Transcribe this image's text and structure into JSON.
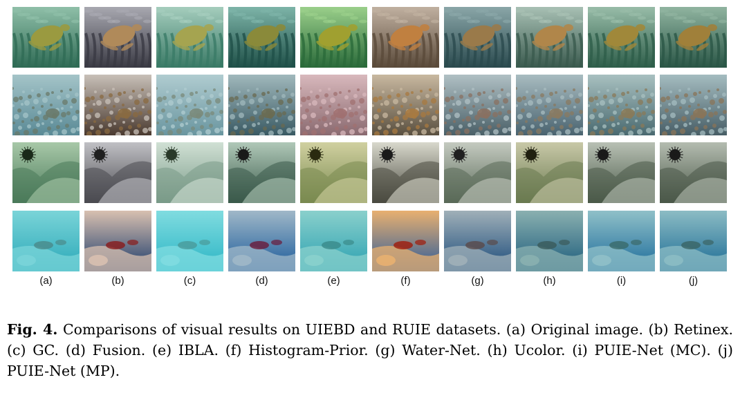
{
  "figure": {
    "column_labels": [
      "(a)",
      "(b)",
      "(c)",
      "(d)",
      "(e)",
      "(f)",
      "(g)",
      "(h)",
      "(i)",
      "(j)"
    ],
    "caption_label": "Fig. 4.",
    "caption_text": " Comparisons of visual results on UIEBD and RUIE datasets. (a) Original image. (b) Retinex. (c) GC. (d) Fusion. (e) IBLA. (f) Histogram-Prior. (g) Water-Net. (h) Ucolor. (i) PUIE-Net (MC). (j) PUIE-Net (MP).",
    "rows": [
      {
        "scene": "sea-turtle",
        "cells": [
          {
            "bg": "#2f6b55",
            "bg2": "#8fbfa8",
            "accent": "#9a9a40"
          },
          {
            "bg": "#3a3a44",
            "bg2": "#a8a8b0",
            "accent": "#b08a5a"
          },
          {
            "bg": "#3a7a66",
            "bg2": "#a5cdbd",
            "accent": "#a5a450"
          },
          {
            "bg": "#1f5048",
            "bg2": "#7db4a8",
            "accent": "#8a8a3a"
          },
          {
            "bg": "#2a6a3a",
            "bg2": "#9acf8a",
            "accent": "#a0a030"
          },
          {
            "bg": "#5a4a3a",
            "bg2": "#c0b0a0",
            "accent": "#c08040"
          },
          {
            "bg": "#2a4a4e",
            "bg2": "#8aa6a8",
            "accent": "#9a7a4a"
          },
          {
            "bg": "#3a5a4e",
            "bg2": "#a8c0b4",
            "accent": "#b0864a"
          },
          {
            "bg": "#2e5e4a",
            "bg2": "#98bca8",
            "accent": "#a0883a"
          },
          {
            "bg": "#2a5646",
            "bg2": "#90b4a0",
            "accent": "#a0803a"
          }
        ]
      },
      {
        "scene": "coral-reef",
        "cells": [
          {
            "bg": "#5a8a96",
            "bg2": "#a4c4c8",
            "accent": "#6a7a6a"
          },
          {
            "bg": "#4a3a30",
            "bg2": "#c8c0b8",
            "accent": "#8a6a40"
          },
          {
            "bg": "#6a96a0",
            "bg2": "#b0ccd0",
            "accent": "#7a8a7a"
          },
          {
            "bg": "#3a5a64",
            "bg2": "#a0b8bc",
            "accent": "#6a6a50"
          },
          {
            "bg": "#8a6a70",
            "bg2": "#d8b8bc",
            "accent": "#a07070"
          },
          {
            "bg": "#5a5040",
            "bg2": "#c8b8a0",
            "accent": "#a87a40"
          },
          {
            "bg": "#4a6068",
            "bg2": "#b0c0c4",
            "accent": "#8a7060"
          },
          {
            "bg": "#4a6470",
            "bg2": "#a8bcc0",
            "accent": "#8a7a60"
          },
          {
            "bg": "#4a6a70",
            "bg2": "#a8c0c0",
            "accent": "#8a7a58"
          },
          {
            "bg": "#485e66",
            "bg2": "#a4bcc0",
            "accent": "#8a7458"
          }
        ]
      },
      {
        "scene": "sea-urchin-rock",
        "cells": [
          {
            "bg": "#4a7a5a",
            "bg2": "#a8c8a8",
            "accent": "#1a2a1a"
          },
          {
            "bg": "#4a4a50",
            "bg2": "#c0c0c4",
            "accent": "#202020"
          },
          {
            "bg": "#7a9a88",
            "bg2": "#d0e0d4",
            "accent": "#2a3a2a"
          },
          {
            "bg": "#3a5a4a",
            "bg2": "#b0c8b8",
            "accent": "#1a1a1a"
          },
          {
            "bg": "#7a8a50",
            "bg2": "#d0d0a0",
            "accent": "#2a2a10"
          },
          {
            "bg": "#4a4a40",
            "bg2": "#d8d8cc",
            "accent": "#1a1a1a"
          },
          {
            "bg": "#5a6a58",
            "bg2": "#c4cac0",
            "accent": "#202020"
          },
          {
            "bg": "#6a7a50",
            "bg2": "#c8c8a8",
            "accent": "#202010"
          },
          {
            "bg": "#4a5a48",
            "bg2": "#b8c0b4",
            "accent": "#1a1a1a"
          },
          {
            "bg": "#4a5848",
            "bg2": "#b4bcb0",
            "accent": "#1a1a1a"
          }
        ]
      },
      {
        "scene": "shallow-seabed",
        "cells": [
          {
            "bg": "#2aa8b8",
            "bg2": "#7ad4d8",
            "accent": "#4a8a8a"
          },
          {
            "bg": "#1a3a6a",
            "bg2": "#d8c0b0",
            "accent": "#8a1a1a"
          },
          {
            "bg": "#2ab4c4",
            "bg2": "#80dce0",
            "accent": "#4a9a9a"
          },
          {
            "bg": "#1a5a9a",
            "bg2": "#a0b8c8",
            "accent": "#6a1a3a"
          },
          {
            "bg": "#2aa0b0",
            "bg2": "#8ad0cc",
            "accent": "#3a8a8a"
          },
          {
            "bg": "#2a5a9a",
            "bg2": "#e8b070",
            "accent": "#a01a0a"
          },
          {
            "bg": "#1a4a7a",
            "bg2": "#a0b0b8",
            "accent": "#5a4a4a"
          },
          {
            "bg": "#1a5a7a",
            "bg2": "#8ab0b0",
            "accent": "#3a5a5a"
          },
          {
            "bg": "#1a6a9a",
            "bg2": "#90c0c8",
            "accent": "#3a6a6a"
          },
          {
            "bg": "#1a6a94",
            "bg2": "#8cbcc4",
            "accent": "#3a6464"
          }
        ]
      }
    ]
  }
}
